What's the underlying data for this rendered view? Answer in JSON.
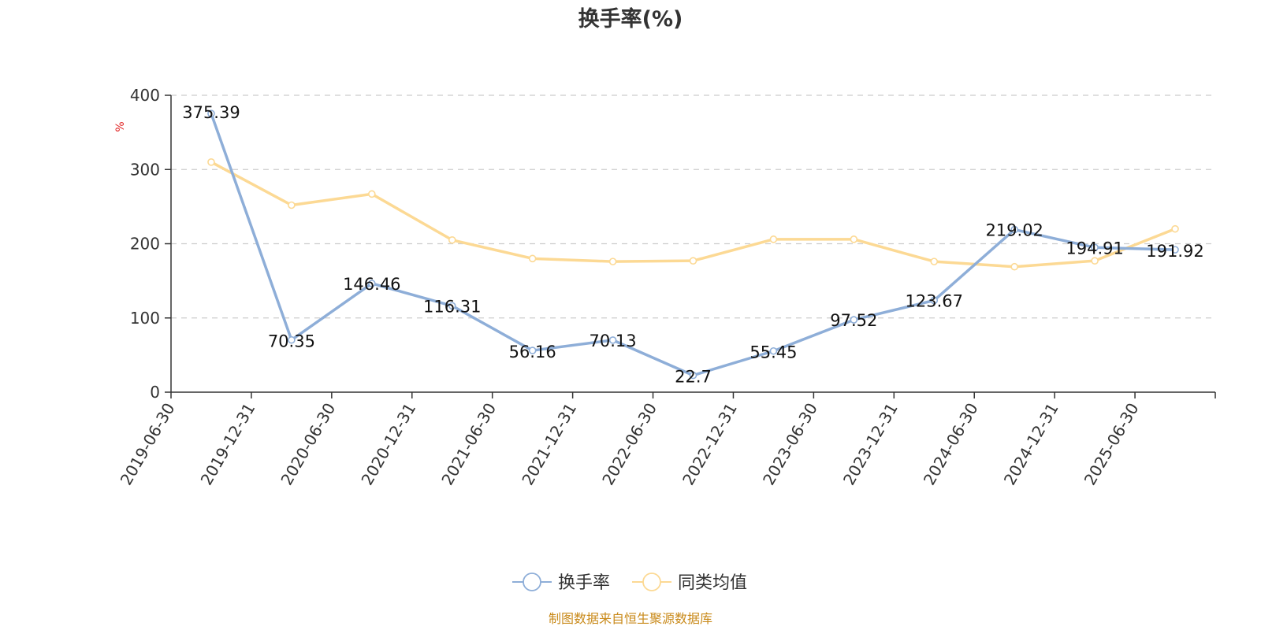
{
  "chart_data": {
    "type": "line",
    "title": "换手率(%)",
    "ylabel": "%",
    "ylim": [
      0,
      400
    ],
    "yticks": [
      0,
      100,
      200,
      300,
      400
    ],
    "grid": true,
    "legend_position": "bottom",
    "categories": [
      "2019-06-30",
      "2019-12-31",
      "2020-06-30",
      "2020-12-31",
      "2021-06-30",
      "2021-12-31",
      "2022-06-30",
      "2022-12-31",
      "2023-06-30",
      "2023-12-31",
      "2024-06-30",
      "2024-12-31",
      "2025-06-30"
    ],
    "series": [
      {
        "name": "换手率",
        "color": "#8eaed8",
        "show_labels": true,
        "values": [
          375.39,
          70.35,
          146.46,
          116.31,
          56.16,
          70.13,
          22.7,
          55.45,
          97.52,
          123.67,
          219.02,
          194.91,
          191.92
        ]
      },
      {
        "name": "同类均值",
        "color": "#fcd994",
        "show_labels": false,
        "values": [
          310,
          252,
          267,
          205,
          180,
          176,
          177,
          206,
          206,
          176,
          169,
          177,
          220
        ]
      }
    ],
    "source": "制图数据来自恒生聚源数据库"
  }
}
